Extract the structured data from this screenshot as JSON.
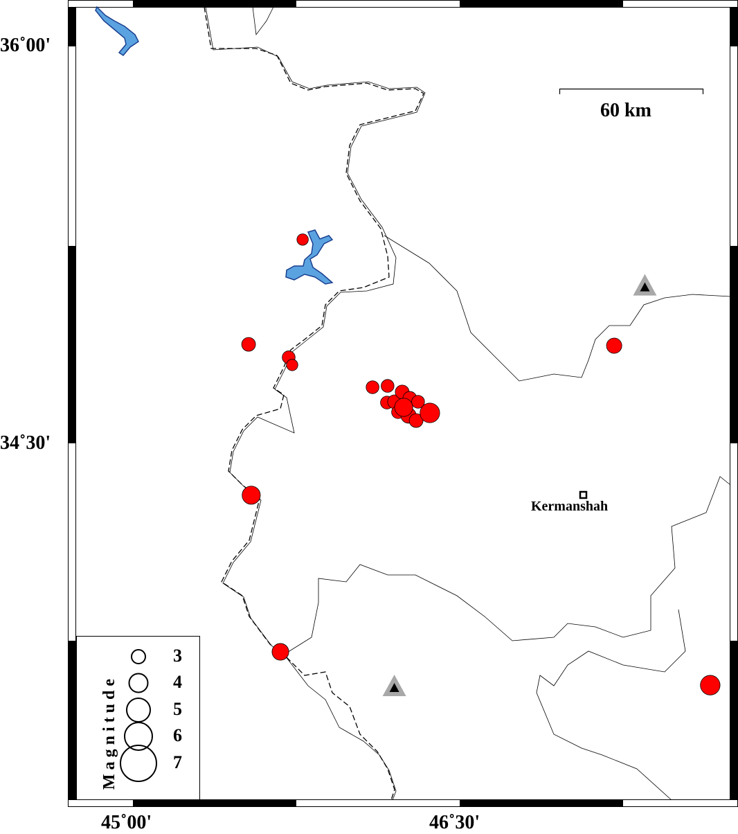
{
  "map": {
    "lon_ticks": [
      {
        "value": 45.0,
        "label": "45˚00'"
      },
      {
        "value": 46.5,
        "label": "46˚30'"
      }
    ],
    "lat_ticks": [
      {
        "value": 36.0,
        "label": "36˚00'"
      },
      {
        "value": 34.5,
        "label": "34˚30'"
      }
    ],
    "scale_bar": {
      "label": "60 km"
    },
    "city": {
      "name": "Kermanshah",
      "lon": 47.06,
      "lat": 34.31
    },
    "stations": [
      {
        "lon": 47.35,
        "lat": 35.09
      },
      {
        "lon": 46.2,
        "lat": 33.576
      }
    ],
    "colors": {
      "event": "#ff0000",
      "water": "#5ba3e0",
      "station": "#a8a8a8"
    },
    "events": [
      {
        "lon": 45.779,
        "lat": 35.27,
        "mag": 2.5
      },
      {
        "lon": 45.531,
        "lat": 34.874,
        "mag": 3.0
      },
      {
        "lon": 45.715,
        "lat": 34.825,
        "mag": 2.8
      },
      {
        "lon": 45.731,
        "lat": 34.796,
        "mag": 2.5
      },
      {
        "lon": 45.543,
        "lat": 34.304,
        "mag": 3.9
      },
      {
        "lon": 45.677,
        "lat": 33.712,
        "mag": 3.6
      },
      {
        "lon": 47.65,
        "lat": 33.586,
        "mag": 4.2
      },
      {
        "lon": 47.209,
        "lat": 34.869,
        "mag": 3.3
      },
      {
        "lon": 46.1,
        "lat": 34.712,
        "mag": 2.8
      },
      {
        "lon": 46.169,
        "lat": 34.717,
        "mag": 2.8
      },
      {
        "lon": 46.166,
        "lat": 34.654,
        "mag": 2.8
      },
      {
        "lon": 46.201,
        "lat": 34.657,
        "mag": 3.0
      },
      {
        "lon": 46.236,
        "lat": 34.694,
        "mag": 3.0
      },
      {
        "lon": 46.271,
        "lat": 34.67,
        "mag": 3.0
      },
      {
        "lon": 46.309,
        "lat": 34.657,
        "mag": 2.8
      },
      {
        "lon": 46.217,
        "lat": 34.618,
        "mag": 2.8
      },
      {
        "lon": 46.265,
        "lat": 34.605,
        "mag": 3.3
      },
      {
        "lon": 46.3,
        "lat": 34.586,
        "mag": 3.0
      },
      {
        "lon": 46.243,
        "lat": 34.636,
        "mag": 3.9
      },
      {
        "lon": 46.363,
        "lat": 34.615,
        "mag": 4.2
      }
    ]
  },
  "legend": {
    "title": "Magnitude",
    "entries": [
      {
        "mag": 3,
        "label": "3"
      },
      {
        "mag": 4,
        "label": "4"
      },
      {
        "mag": 5,
        "label": "5"
      },
      {
        "mag": 6,
        "label": "6"
      },
      {
        "mag": 7,
        "label": "7"
      }
    ]
  }
}
